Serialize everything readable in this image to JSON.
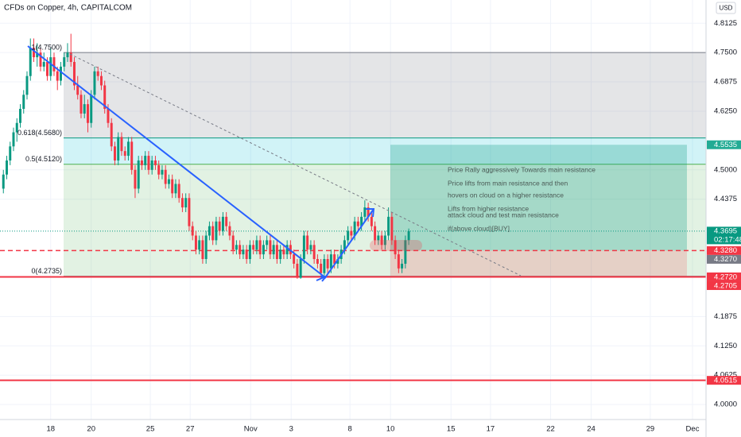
{
  "chart_data": {
    "type": "candlestick",
    "title": "CFDs on Copper, 4h, CAPITALCOM",
    "currency": "USD",
    "up_color": "#089981",
    "down_color": "#f23645",
    "grid": true,
    "xlim": [
      -1,
      208
    ],
    "ylim": [
      3.968,
      4.862
    ],
    "xticks": [
      {
        "value": 14,
        "label": "18"
      },
      {
        "value": 26,
        "label": "20"
      },
      {
        "value": 43.5,
        "label": "25"
      },
      {
        "value": 55.3,
        "label": "27"
      },
      {
        "value": 73.2,
        "label": "Nov"
      },
      {
        "value": 85.2,
        "label": "3"
      },
      {
        "value": 102.6,
        "label": "8"
      },
      {
        "value": 114.6,
        "label": "10"
      },
      {
        "value": 132.5,
        "label": "15"
      },
      {
        "value": 144.2,
        "label": "17"
      },
      {
        "value": 162,
        "label": "22"
      },
      {
        "value": 174,
        "label": "24"
      },
      {
        "value": 191.5,
        "label": "29"
      },
      {
        "value": 204,
        "label": "Dec"
      }
    ],
    "yticks": [
      4.8125,
      {
        "value": 4.75,
        "label": "4.7500"
      },
      4.6875,
      {
        "value": 4.625,
        "label": "4.6250"
      },
      {
        "value": 4.5,
        "label": "4.5000"
      },
      4.4375,
      4.1875,
      {
        "value": 4.125,
        "label": "4.1250"
      },
      4.0625,
      {
        "value": 4.0,
        "label": "4.0000"
      }
    ],
    "ohlc": [
      [
        4.46,
        4.5,
        4.45,
        4.49
      ],
      [
        4.49,
        4.53,
        4.48,
        4.52
      ],
      [
        4.52,
        4.56,
        4.51,
        4.55
      ],
      [
        4.55,
        4.59,
        4.54,
        4.58
      ],
      [
        4.58,
        4.61,
        4.56,
        4.6
      ],
      [
        4.6,
        4.64,
        4.59,
        4.63
      ],
      [
        4.63,
        4.67,
        4.62,
        4.66
      ],
      [
        4.66,
        4.71,
        4.65,
        4.7
      ],
      [
        4.7,
        4.78,
        4.69,
        4.76
      ],
      [
        4.76,
        4.78,
        4.73,
        4.74
      ],
      [
        4.74,
        4.77,
        4.72,
        4.75
      ],
      [
        4.75,
        4.76,
        4.71,
        4.72
      ],
      [
        4.72,
        4.75,
        4.71,
        4.73
      ],
      [
        4.73,
        4.74,
        4.69,
        4.7
      ],
      [
        4.7,
        4.76,
        4.69,
        4.74
      ],
      [
        4.74,
        4.75,
        4.7,
        4.71
      ],
      [
        4.71,
        4.72,
        4.67,
        4.69
      ],
      [
        4.69,
        4.73,
        4.68,
        4.72
      ],
      [
        4.72,
        4.75,
        4.71,
        4.74
      ],
      [
        4.74,
        4.77,
        4.73,
        4.75
      ],
      [
        4.75,
        4.79,
        4.72,
        4.73
      ],
      [
        4.73,
        4.74,
        4.67,
        4.68
      ],
      [
        4.68,
        4.7,
        4.65,
        4.66
      ],
      [
        4.66,
        4.67,
        4.61,
        4.62
      ],
      [
        4.62,
        4.66,
        4.61,
        4.64
      ],
      [
        4.64,
        4.65,
        4.58,
        4.6
      ],
      [
        4.6,
        4.67,
        4.59,
        4.66
      ],
      [
        4.66,
        4.72,
        4.65,
        4.71
      ],
      [
        4.71,
        4.72,
        4.69,
        4.7
      ],
      [
        4.7,
        4.71,
        4.67,
        4.68
      ],
      [
        4.68,
        4.69,
        4.62,
        4.63
      ],
      [
        4.63,
        4.64,
        4.59,
        4.6
      ],
      [
        4.6,
        4.61,
        4.54,
        4.55
      ],
      [
        4.55,
        4.56,
        4.51,
        4.52
      ],
      [
        4.52,
        4.58,
        4.51,
        4.57
      ],
      [
        4.57,
        4.58,
        4.53,
        4.54
      ],
      [
        4.54,
        4.55,
        4.52,
        4.53
      ],
      [
        4.53,
        4.57,
        4.52,
        4.56
      ],
      [
        4.56,
        4.57,
        4.49,
        4.5
      ],
      [
        4.5,
        4.51,
        4.44,
        4.46
      ],
      [
        4.46,
        4.53,
        4.45,
        4.52
      ],
      [
        4.52,
        4.53,
        4.5,
        4.51
      ],
      [
        4.51,
        4.54,
        4.5,
        4.53
      ],
      [
        4.53,
        4.54,
        4.49,
        4.5
      ],
      [
        4.5,
        4.53,
        4.49,
        4.52
      ],
      [
        4.52,
        4.53,
        4.5,
        4.51
      ],
      [
        4.51,
        4.52,
        4.48,
        4.49
      ],
      [
        4.49,
        4.51,
        4.48,
        4.5
      ],
      [
        4.5,
        4.51,
        4.46,
        4.47
      ],
      [
        4.47,
        4.49,
        4.46,
        4.48
      ],
      [
        4.48,
        4.49,
        4.44,
        4.45
      ],
      [
        4.45,
        4.48,
        4.44,
        4.47
      ],
      [
        4.47,
        4.48,
        4.43,
        4.44
      ],
      [
        4.44,
        4.45,
        4.41,
        4.42
      ],
      [
        4.42,
        4.45,
        4.41,
        4.44
      ],
      [
        4.44,
        4.45,
        4.37,
        4.38
      ],
      [
        4.38,
        4.39,
        4.35,
        4.36
      ],
      [
        4.36,
        4.37,
        4.32,
        4.33
      ],
      [
        4.33,
        4.36,
        4.32,
        4.35
      ],
      [
        4.35,
        4.36,
        4.3,
        4.31
      ],
      [
        4.31,
        4.37,
        4.3,
        4.36
      ],
      [
        4.36,
        4.39,
        4.35,
        4.38
      ],
      [
        4.38,
        4.39,
        4.34,
        4.35
      ],
      [
        4.35,
        4.4,
        4.34,
        4.39
      ],
      [
        4.39,
        4.4,
        4.36,
        4.37
      ],
      [
        4.37,
        4.41,
        4.36,
        4.4
      ],
      [
        4.4,
        4.41,
        4.37,
        4.38
      ],
      [
        4.38,
        4.39,
        4.35,
        4.36
      ],
      [
        4.36,
        4.37,
        4.32,
        4.33
      ],
      [
        4.33,
        4.35,
        4.32,
        4.34
      ],
      [
        4.34,
        4.35,
        4.31,
        4.32
      ],
      [
        4.32,
        4.34,
        4.31,
        4.33
      ],
      [
        4.33,
        4.34,
        4.3,
        4.31
      ],
      [
        4.31,
        4.35,
        4.3,
        4.34
      ],
      [
        4.34,
        4.35,
        4.32,
        4.33
      ],
      [
        4.33,
        4.36,
        4.32,
        4.35
      ],
      [
        4.35,
        4.36,
        4.31,
        4.32
      ],
      [
        4.32,
        4.35,
        4.31,
        4.34
      ],
      [
        4.34,
        4.36,
        4.33,
        4.35
      ],
      [
        4.35,
        4.36,
        4.31,
        4.32
      ],
      [
        4.32,
        4.35,
        4.31,
        4.34
      ],
      [
        4.34,
        4.35,
        4.3,
        4.31
      ],
      [
        4.31,
        4.34,
        4.3,
        4.33
      ],
      [
        4.33,
        4.34,
        4.31,
        4.32
      ],
      [
        4.32,
        4.35,
        4.31,
        4.34
      ],
      [
        4.34,
        4.35,
        4.31,
        4.32
      ],
      [
        4.32,
        4.33,
        4.29,
        4.3
      ],
      [
        4.3,
        4.31,
        4.268,
        4.27
      ],
      [
        4.27,
        4.32,
        4.268,
        4.31
      ],
      [
        4.31,
        4.37,
        4.3,
        4.36
      ],
      [
        4.36,
        4.37,
        4.32,
        4.33
      ],
      [
        4.33,
        4.35,
        4.32,
        4.34
      ],
      [
        4.34,
        4.35,
        4.3,
        4.31
      ],
      [
        4.31,
        4.32,
        4.29,
        4.3
      ],
      [
        4.3,
        4.31,
        4.275,
        4.28
      ],
      [
        4.28,
        4.32,
        4.275,
        4.31
      ],
      [
        4.31,
        4.32,
        4.28,
        4.29
      ],
      [
        4.29,
        4.33,
        4.28,
        4.32
      ],
      [
        4.32,
        4.33,
        4.29,
        4.3
      ],
      [
        4.3,
        4.32,
        4.29,
        4.31
      ],
      [
        4.31,
        4.34,
        4.3,
        4.33
      ],
      [
        4.33,
        4.36,
        4.32,
        4.35
      ],
      [
        4.35,
        4.38,
        4.34,
        4.37
      ],
      [
        4.37,
        4.38,
        4.35,
        4.36
      ],
      [
        4.36,
        4.4,
        4.35,
        4.39
      ],
      [
        4.39,
        4.4,
        4.37,
        4.38
      ],
      [
        4.38,
        4.41,
        4.37,
        4.4
      ],
      [
        4.4,
        4.435,
        4.39,
        4.42
      ],
      [
        4.42,
        4.43,
        4.39,
        4.4
      ],
      [
        4.4,
        4.41,
        4.37,
        4.38
      ],
      [
        4.38,
        4.39,
        4.34,
        4.35
      ],
      [
        4.35,
        4.37,
        4.34,
        4.36
      ],
      [
        4.36,
        4.37,
        4.33,
        4.34
      ],
      [
        4.34,
        4.37,
        4.33,
        4.36
      ],
      [
        4.36,
        4.42,
        4.35,
        4.4
      ],
      [
        4.4,
        4.41,
        4.34,
        4.35
      ],
      [
        4.35,
        4.36,
        4.31,
        4.32
      ],
      [
        4.32,
        4.33,
        4.28,
        4.29
      ],
      [
        4.29,
        4.31,
        4.28,
        4.3
      ],
      [
        4.3,
        4.36,
        4.29,
        4.35
      ],
      [
        4.35,
        4.375,
        4.34,
        4.3695
      ]
    ],
    "fib": [
      {
        "value": 4.75,
        "label": "1(4.7500)",
        "color": "#787b86",
        "fill": "rgba(120,123,134,0.2)"
      },
      {
        "value": 4.568,
        "label": "0.618(4.5680)",
        "color": "#089981",
        "fill": "rgba(0,188,212,0.18)"
      },
      {
        "value": 4.512,
        "label": "0.5(4.5120)",
        "color": "#4caf50",
        "fill": "rgba(76,175,80,0.16)"
      },
      {
        "value": 4.2735,
        "label": "0(4.2735)",
        "color": "#787b86"
      }
    ],
    "position": {
      "target": 4.5535,
      "entry": 4.328,
      "stop": 4.2705
    },
    "levels": [
      {
        "value": 4.328,
        "color": "#f23645",
        "style": "dashed"
      },
      {
        "value": 4.272,
        "color": "#f23645",
        "style": "solid"
      },
      {
        "value": 4.0515,
        "color": "#f23645",
        "style": "solid"
      }
    ],
    "price_labels": [
      {
        "value": 4.5535,
        "label": "4.5535",
        "color": "#22ab94"
      },
      {
        "value": 4.3695,
        "label": "4.3695",
        "color": "#089981",
        "countdown": "02:17:48"
      },
      {
        "value": 4.328,
        "label": "4.3280",
        "color": "#f23645"
      },
      {
        "value": 4.327,
        "label": "4.3270",
        "color": "#787b86"
      },
      {
        "value": 4.272,
        "label": "4.2720",
        "color": "#f23645"
      },
      {
        "value": 4.2705,
        "label": "4.2705",
        "color": "#f23645"
      },
      {
        "value": 4.0515,
        "label": "4.0515",
        "color": "#f23645"
      }
    ],
    "annotations": [
      "Price Rally aggressively Towards  main resistance",
      "Price lifts from main resistance and then",
      "hovers on cloud on a higher resistance",
      "Lifts from higher resistance",
      "attack cloud and test main resistance",
      "if(above cloud)[BUY]"
    ]
  }
}
